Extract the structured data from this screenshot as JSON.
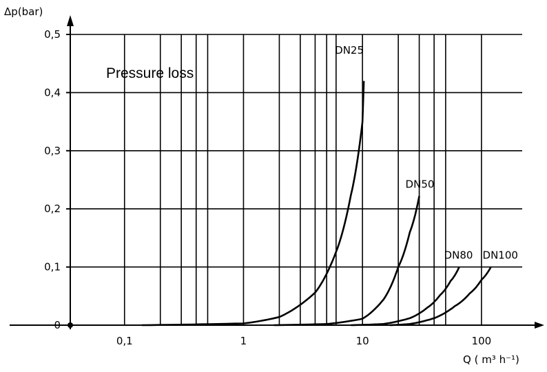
{
  "chart_data": {
    "type": "line",
    "title": "Pressure loss",
    "ylabel": "Δp(bar)",
    "xlabel": "Q ( m³ h⁻¹)",
    "x_scale": "log",
    "xlim": [
      0.035,
      220
    ],
    "ylim": [
      0,
      0.5
    ],
    "grid": true,
    "y_ticks": [
      {
        "value": 0,
        "label": "0"
      },
      {
        "value": 0.1,
        "label": "0,1"
      },
      {
        "value": 0.2,
        "label": "0,2"
      },
      {
        "value": 0.3,
        "label": "0,3"
      },
      {
        "value": 0.4,
        "label": "0,4"
      },
      {
        "value": 0.5,
        "label": "0,5"
      }
    ],
    "x_ticks": [
      {
        "value": 0.1,
        "label": "0,1"
      },
      {
        "value": 1,
        "label": "1"
      },
      {
        "value": 10,
        "label": "10"
      },
      {
        "value": 100,
        "label": "100"
      }
    ],
    "x_minor_grid": [
      0.2,
      0.3,
      0.4,
      0.5,
      2,
      3,
      4,
      5,
      6,
      20,
      30,
      40,
      50
    ],
    "series": [
      {
        "name": "DN25",
        "x": [
          0.14,
          1,
          2,
          4,
          6,
          8,
          10
        ],
        "y": [
          0,
          0.003,
          0.014,
          0.056,
          0.126,
          0.224,
          0.35
        ]
      },
      {
        "name": "DN50",
        "x": [
          1.8,
          5,
          10,
          15,
          20,
          25,
          30
        ],
        "y": [
          0,
          0.002,
          0.011,
          0.044,
          0.1,
          0.16,
          0.222
        ]
      },
      {
        "name": "DN80",
        "x": [
          8,
          15,
          25,
          35,
          45,
          55,
          65
        ],
        "y": [
          0,
          0.002,
          0.012,
          0.03,
          0.052,
          0.076,
          0.1
        ]
      },
      {
        "name": "DN100",
        "x": [
          17,
          25,
          40,
          60,
          80,
          100,
          120
        ],
        "y": [
          0,
          0.002,
          0.012,
          0.033,
          0.055,
          0.078,
          0.1
        ]
      }
    ],
    "label_positions": "curve-ends"
  }
}
